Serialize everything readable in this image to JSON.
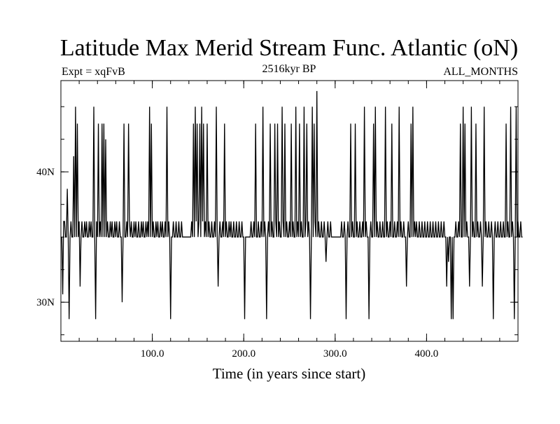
{
  "chart_data": {
    "type": "line",
    "title": "Latitude Max Merid Stream Func. Atlantic (oN)",
    "subtitle_left": "Expt = xqFvB",
    "subtitle_center": "2516kyr BP",
    "subtitle_right": "ALL_MONTHS",
    "xlabel": "Time (in years since start)",
    "ylabel": "",
    "xlim": [
      0,
      500
    ],
    "ylim": [
      27,
      47
    ],
    "x_ticks": [
      {
        "value": 100,
        "label": "100.0"
      },
      {
        "value": 200,
        "label": "200.0"
      },
      {
        "value": 300,
        "label": "300.0"
      },
      {
        "value": 400,
        "label": "400.0"
      }
    ],
    "y_ticks": [
      {
        "value": 30,
        "label": "30N"
      },
      {
        "value": 40,
        "label": "40N"
      }
    ],
    "x_minor_step": 20,
    "y_minor_step": 2.5,
    "grid": false,
    "legend": "none",
    "series": [
      {
        "color": "#000000",
        "x_start": 1,
        "x_step": 1,
        "y": [
          35,
          30.6,
          36.2,
          36.2,
          35,
          35,
          38.7,
          35,
          28.7,
          35,
          36.2,
          35,
          35,
          41.2,
          35,
          45,
          35,
          43.7,
          35,
          36.2,
          31.2,
          35,
          36.2,
          35,
          35,
          36.2,
          35,
          36.2,
          35,
          35,
          36.2,
          35,
          36.2,
          35,
          35,
          45,
          35,
          28.7,
          36.2,
          35,
          43.7,
          35,
          36.2,
          35,
          43.7,
          35,
          43.7,
          35,
          42.5,
          35,
          36.2,
          35,
          35,
          36.2,
          35,
          36.2,
          35,
          35,
          36.2,
          35,
          36.2,
          35,
          35,
          36.2,
          35,
          35,
          30,
          35,
          43.7,
          35,
          35,
          36.2,
          35,
          43.7,
          36.2,
          35,
          36.2,
          35,
          35,
          36.2,
          35,
          36.2,
          35,
          35,
          36.2,
          35,
          35,
          36.2,
          35,
          36.2,
          35,
          35,
          36.2,
          35,
          36.2,
          35,
          45,
          35,
          43.7,
          35,
          36.2,
          35,
          35,
          36.2,
          35,
          36.2,
          35,
          35,
          36.2,
          35,
          36.2,
          35,
          35,
          36.2,
          35,
          45,
          35,
          36.2,
          35,
          28.7,
          35,
          35,
          36.2,
          35,
          35,
          36.2,
          35,
          35,
          36.2,
          35,
          35,
          36.2,
          35,
          35,
          35,
          35,
          35,
          35,
          35,
          35,
          35,
          35,
          36.2,
          35,
          43.7,
          35,
          45,
          36.2,
          43.7,
          35,
          36.2,
          43.7,
          35,
          45,
          36.2,
          43.7,
          35,
          36.2,
          35,
          43.7,
          35,
          36.2,
          35,
          35,
          36.2,
          35,
          35,
          36.2,
          35,
          45,
          35,
          31.2,
          35,
          36.2,
          35,
          35,
          36.2,
          35,
          43.7,
          35,
          36.2,
          35,
          35,
          36.2,
          35,
          36.2,
          35,
          35,
          36.2,
          35,
          35,
          36.2,
          35,
          35,
          36.2,
          35,
          35,
          36.2,
          35,
          35,
          28.7,
          35,
          35,
          35,
          35,
          35,
          35,
          36.2,
          35,
          35,
          36.2,
          35,
          43.7,
          35,
          35,
          36.2,
          35,
          35,
          36.2,
          35,
          45,
          35,
          36.2,
          35,
          28.7,
          35,
          36.2,
          35,
          43.7,
          35,
          36.2,
          35,
          35,
          43.7,
          36.2,
          35,
          43.7,
          35,
          36.2,
          35,
          35,
          45,
          36.2,
          35,
          43.7,
          35,
          36.2,
          35,
          35,
          36.2,
          35,
          43.7,
          35,
          36.2,
          35,
          35,
          45,
          35,
          36.2,
          35,
          43.7,
          35,
          36.2,
          35,
          35,
          45,
          35,
          36.2,
          43.7,
          35,
          36.2,
          35,
          28.7,
          35,
          45,
          35,
          43.7,
          36.2,
          35,
          46.2,
          35,
          36.2,
          35,
          35,
          36.2,
          35,
          35,
          36.2,
          35,
          33.1,
          35,
          36.2,
          35,
          35,
          36.2,
          35,
          35,
          35,
          35,
          35,
          35,
          35,
          35,
          35,
          35,
          35,
          36.2,
          35,
          35,
          36.2,
          35,
          28.7,
          35,
          36.2,
          35,
          35,
          43.7,
          35,
          36.2,
          35,
          35,
          43.7,
          35,
          36.2,
          35,
          35,
          36.2,
          35,
          35,
          36.2,
          35,
          45,
          35,
          36.2,
          35,
          35,
          28.7,
          35,
          36.2,
          35,
          35,
          43.7,
          35,
          45,
          35,
          36.2,
          35,
          35,
          36.2,
          35,
          35,
          36.2,
          35,
          35,
          45,
          35,
          36.2,
          35,
          35,
          36.2,
          35,
          43.7,
          35,
          35,
          36.2,
          35,
          35,
          36.2,
          35,
          45,
          35,
          36.2,
          35,
          35,
          36.2,
          35,
          35,
          31.2,
          35,
          36.2,
          35,
          35,
          43.7,
          35,
          45,
          35,
          36.2,
          35,
          36.2,
          35,
          35,
          36.2,
          35,
          35,
          36.2,
          35,
          35,
          36.2,
          35,
          35,
          36.2,
          35,
          35,
          36.2,
          35,
          35,
          36.2,
          35,
          35,
          36.2,
          35,
          35,
          36.2,
          35,
          35,
          36.2,
          35,
          35,
          36.2,
          35,
          35,
          31.2,
          35,
          33.1,
          35,
          35,
          28.7,
          35,
          28.7,
          35,
          35,
          36.2,
          35,
          35,
          36.2,
          35,
          43.7,
          35,
          35,
          45,
          35,
          43.7,
          35,
          36.2,
          35,
          35,
          31.2,
          35,
          45,
          35,
          36.2,
          35,
          35,
          43.7,
          35,
          36.2,
          35,
          35,
          36.2,
          35,
          31.2,
          35,
          45,
          35,
          36.2,
          35,
          35,
          36.2,
          35,
          35,
          36.2,
          35,
          28.7,
          35,
          36.2,
          35,
          35,
          36.2,
          35,
          35,
          36.2,
          35,
          35,
          36.2,
          35,
          35,
          43.7,
          35,
          36.2,
          35,
          35,
          45,
          35,
          36.2,
          35,
          28.7,
          35,
          45,
          35,
          36.2,
          35,
          35,
          36.2,
          35,
          35
        ]
      }
    ]
  }
}
